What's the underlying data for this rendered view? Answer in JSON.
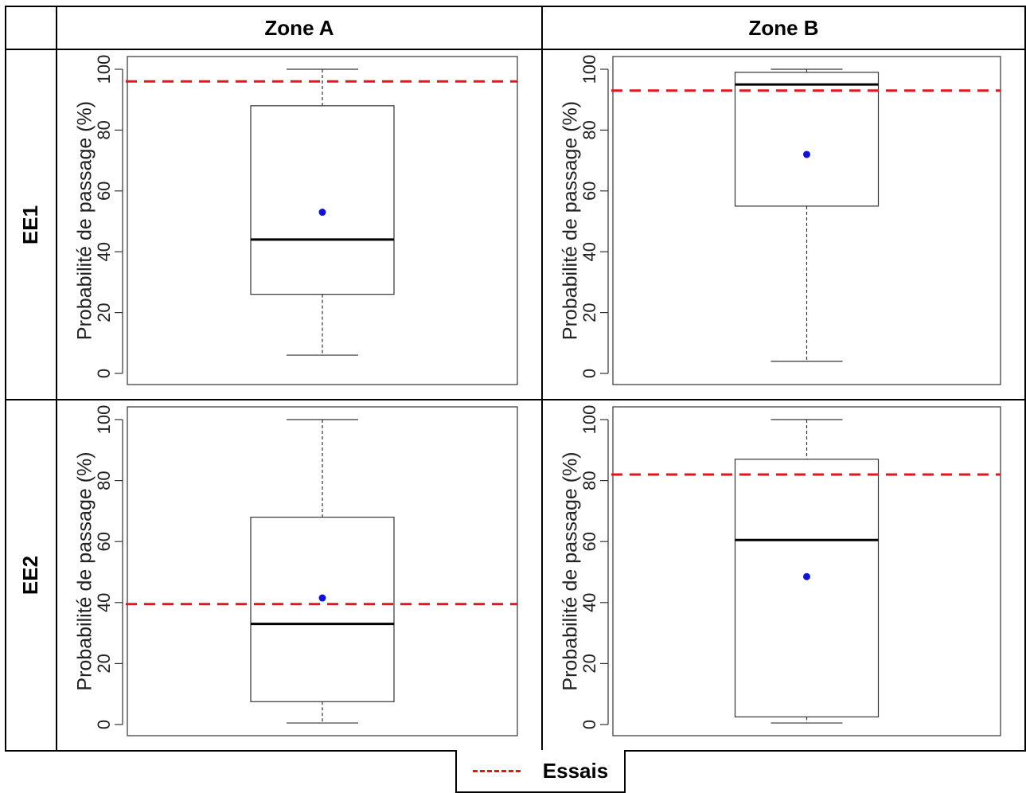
{
  "header": {
    "corner": "",
    "zone_a": "Zone A",
    "zone_b": "Zone B"
  },
  "rows": {
    "ee1": "EE1",
    "ee2": "EE2"
  },
  "legend": {
    "label": "Essais",
    "line_color": "#e8141c"
  },
  "chart_data": [
    {
      "id": "ee1-zone-a",
      "type": "box",
      "ylabel": "Probabilité de passage (%)",
      "ylim": [
        0,
        100
      ],
      "yticks": [
        0,
        20,
        40,
        60,
        80,
        100
      ],
      "box": {
        "whisker_low": 6,
        "q1": 26,
        "median": 44,
        "q3": 88,
        "whisker_high": 100,
        "mean": 53
      },
      "reference_line": {
        "name": "Essais",
        "value": 96
      }
    },
    {
      "id": "ee1-zone-b",
      "type": "box",
      "ylabel": "Probabilité de passage (%)",
      "ylim": [
        0,
        100
      ],
      "yticks": [
        0,
        20,
        40,
        60,
        80,
        100
      ],
      "box": {
        "whisker_low": 4,
        "q1": 55,
        "median": 95,
        "q3": 99,
        "whisker_high": 100,
        "mean": 72
      },
      "reference_line": {
        "name": "Essais",
        "value": 93
      }
    },
    {
      "id": "ee2-zone-a",
      "type": "box",
      "ylabel": "Probabilité de passage (%)",
      "ylim": [
        0,
        100
      ],
      "yticks": [
        0,
        20,
        40,
        60,
        80,
        100
      ],
      "box": {
        "whisker_low": 0.5,
        "q1": 7.5,
        "median": 33,
        "q3": 68,
        "whisker_high": 100,
        "mean": 41.5
      },
      "reference_line": {
        "name": "Essais",
        "value": 39.5
      }
    },
    {
      "id": "ee2-zone-b",
      "type": "box",
      "ylabel": "Probabilité de passage (%)",
      "ylim": [
        0,
        100
      ],
      "yticks": [
        0,
        20,
        40,
        60,
        80,
        100
      ],
      "box": {
        "whisker_low": 0.5,
        "q1": 2.5,
        "median": 60.5,
        "q3": 87,
        "whisker_high": 100,
        "mean": 48.5
      },
      "reference_line": {
        "name": "Essais",
        "value": 82
      }
    }
  ]
}
